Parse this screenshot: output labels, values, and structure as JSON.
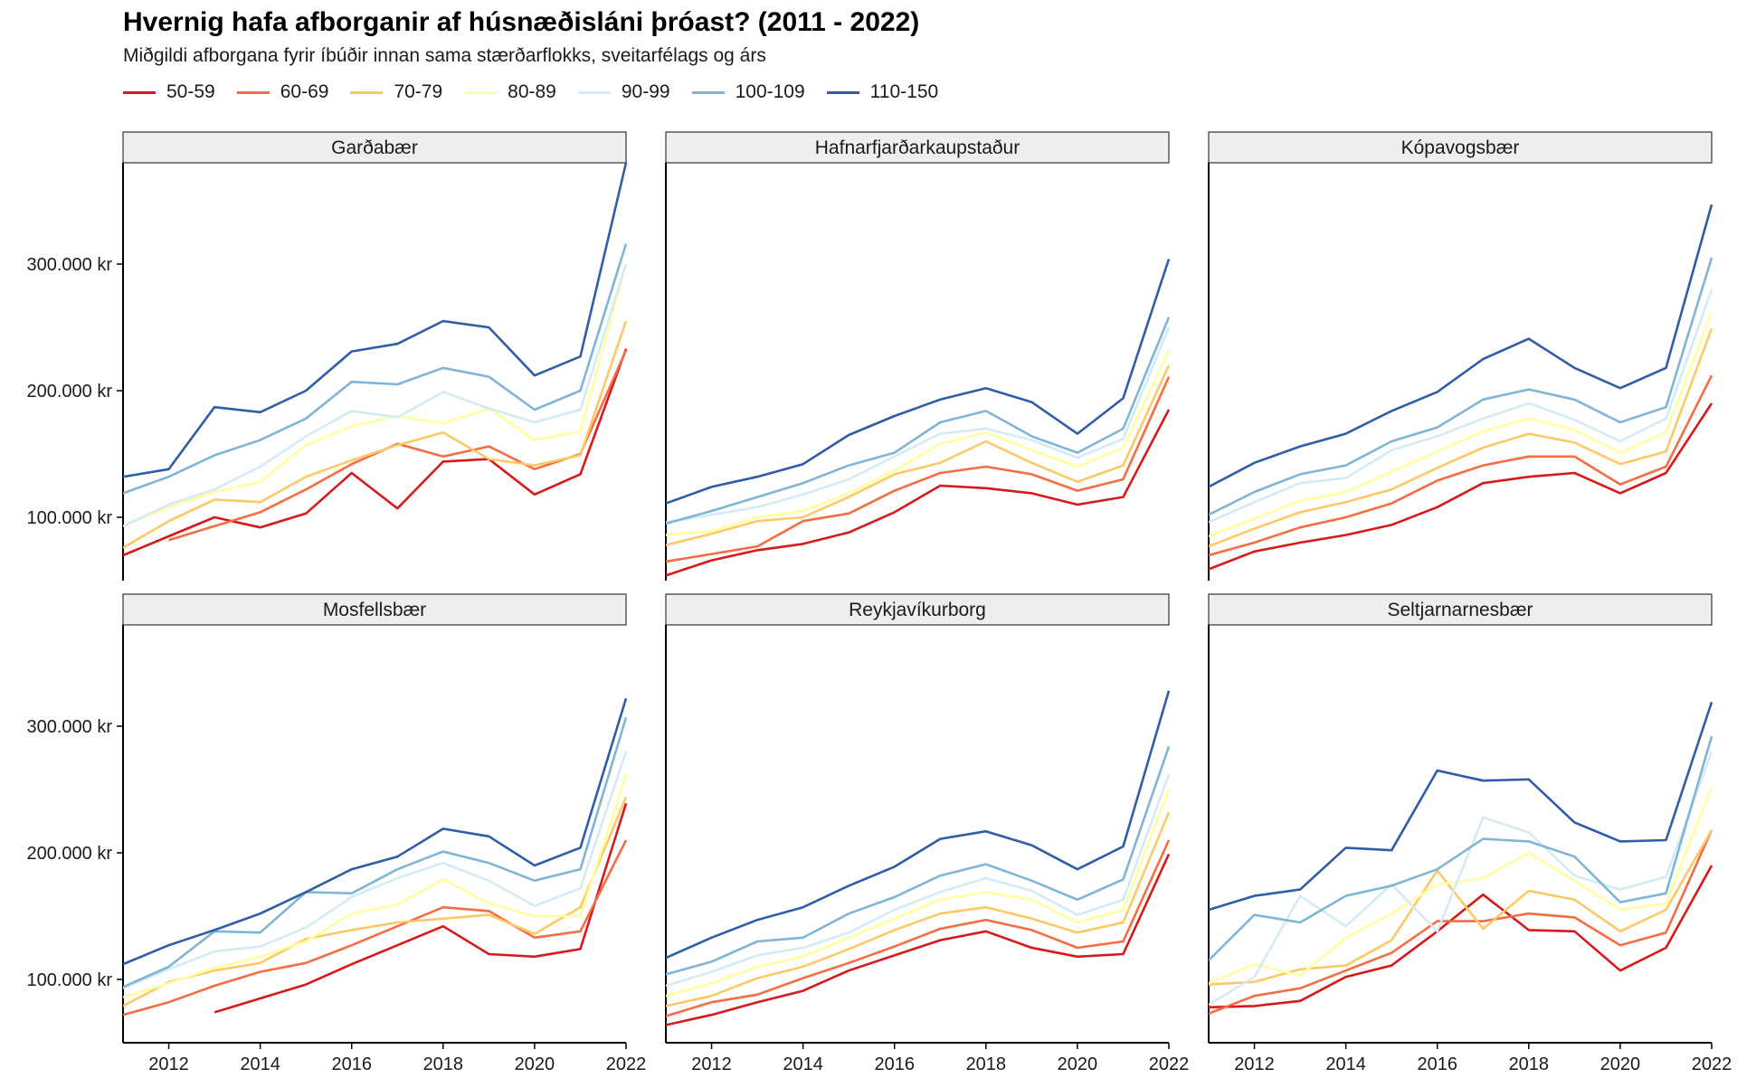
{
  "chart_data": {
    "type": "line",
    "title": "Hvernig hafa afborganir af húsnæðisláni þróast? (2011 - 2022)",
    "subtitle": "Miðgildi afborgana fyrir íbúðir innan sama stærðarflokks, sveitarfélags og árs",
    "xlabel": "",
    "ylabel": "",
    "x": [
      2011,
      2012,
      2013,
      2014,
      2015,
      2016,
      2017,
      2018,
      2019,
      2020,
      2021,
      2022
    ],
    "x_ticks": [
      2012,
      2014,
      2016,
      2018,
      2020,
      2022
    ],
    "xlim": [
      2011,
      2022
    ],
    "ylim": [
      50000,
      380000
    ],
    "y_ticks": [
      100000,
      200000,
      300000
    ],
    "y_tick_labels": [
      "100.000 kr",
      "200.000 kr",
      "300.000 kr"
    ],
    "grid": false,
    "legend_position": "top-left",
    "series_names": [
      "50-59",
      "60-69",
      "70-79",
      "80-89",
      "90-99",
      "100-109",
      "110-150"
    ],
    "series_colors": [
      "#d7191c",
      "#f46d43",
      "#fdc966",
      "#ffffa0",
      "#d4ebf5",
      "#7fb5d5",
      "#2f5da8"
    ],
    "panels": [
      {
        "name": "Garðabær",
        "series": [
          [
            70000,
            85000,
            100000,
            92000,
            103000,
            135000,
            107000,
            144000,
            146000,
            118000,
            134000,
            233000
          ],
          [
            null,
            82000,
            93000,
            104000,
            122000,
            142000,
            158000,
            148000,
            156000,
            138000,
            150000,
            232000
          ],
          [
            76000,
            97000,
            114000,
            112000,
            132000,
            145000,
            157000,
            167000,
            146000,
            141000,
            149000,
            255000
          ],
          [
            93000,
            108000,
            120000,
            128000,
            157000,
            172000,
            180000,
            174000,
            186000,
            161000,
            168000,
            300000
          ],
          [
            93000,
            110000,
            122000,
            140000,
            164000,
            184000,
            179000,
            199000,
            186000,
            175000,
            185000,
            300000
          ],
          [
            119000,
            132000,
            149000,
            161000,
            178000,
            207000,
            205000,
            218000,
            211000,
            185000,
            200000,
            316000
          ],
          [
            132000,
            138000,
            187000,
            183000,
            200000,
            231000,
            237000,
            255000,
            250000,
            212000,
            227000,
            380000
          ]
        ]
      },
      {
        "name": "Hafnarfjarðarkaupstaður",
        "series": [
          [
            54000,
            66000,
            74000,
            79000,
            88000,
            104000,
            125000,
            123000,
            119000,
            110000,
            116000,
            185000
          ],
          [
            65000,
            71000,
            77000,
            97000,
            103000,
            121000,
            135000,
            140000,
            134000,
            121000,
            130000,
            211000
          ],
          [
            78000,
            87000,
            97000,
            100000,
            116000,
            134000,
            143000,
            160000,
            143000,
            128000,
            141000,
            220000
          ],
          [
            86000,
            89000,
            100000,
            105000,
            119000,
            137000,
            158000,
            167000,
            153000,
            140000,
            155000,
            232000
          ],
          [
            96000,
            102000,
            108000,
            118000,
            130000,
            148000,
            166000,
            170000,
            161000,
            147000,
            162000,
            250000
          ],
          [
            95000,
            105000,
            116000,
            127000,
            141000,
            151000,
            175000,
            184000,
            164000,
            151000,
            170000,
            258000
          ],
          [
            111000,
            124000,
            132000,
            142000,
            165000,
            180000,
            193000,
            202000,
            191000,
            166000,
            194000,
            304000
          ]
        ]
      },
      {
        "name": "Kópavogsbær",
        "series": [
          [
            59000,
            73000,
            80000,
            86000,
            94000,
            108000,
            127000,
            132000,
            135000,
            119000,
            135000,
            190000
          ],
          [
            70000,
            80000,
            92000,
            100000,
            111000,
            129000,
            141000,
            148000,
            148000,
            126000,
            140000,
            212000
          ],
          [
            77000,
            91000,
            104000,
            112000,
            122000,
            139000,
            155000,
            166000,
            159000,
            142000,
            152000,
            249000
          ],
          [
            85000,
            99000,
            113000,
            120000,
            136000,
            152000,
            168000,
            178000,
            169000,
            151000,
            167000,
            262000
          ],
          [
            96000,
            112000,
            127000,
            131000,
            153000,
            164000,
            178000,
            190000,
            177000,
            160000,
            178000,
            280000
          ],
          [
            102000,
            120000,
            134000,
            141000,
            160000,
            171000,
            193000,
            201000,
            193000,
            175000,
            187000,
            305000
          ],
          [
            124000,
            143000,
            156000,
            166000,
            184000,
            199000,
            225000,
            241000,
            218000,
            202000,
            218000,
            347000
          ]
        ]
      },
      {
        "name": "Mosfellsbær",
        "series": [
          [
            null,
            null,
            74000,
            85000,
            96000,
            112000,
            127000,
            142000,
            120000,
            118000,
            124000,
            239000
          ],
          [
            72000,
            82000,
            95000,
            106000,
            113000,
            127000,
            142000,
            157000,
            154000,
            133000,
            138000,
            210000
          ],
          [
            79000,
            98000,
            107000,
            113000,
            132000,
            139000,
            145000,
            148000,
            151000,
            136000,
            157000,
            244000
          ],
          [
            86000,
            97000,
            109000,
            118000,
            130000,
            152000,
            159000,
            179000,
            160000,
            150000,
            150000,
            262000
          ],
          [
            93000,
            108000,
            122000,
            126000,
            141000,
            165000,
            180000,
            192000,
            178000,
            158000,
            172000,
            280000
          ],
          [
            94000,
            110000,
            138000,
            137000,
            169000,
            168000,
            187000,
            201000,
            192000,
            178000,
            187000,
            307000
          ],
          [
            112000,
            127000,
            139000,
            152000,
            169000,
            187000,
            197000,
            219000,
            213000,
            190000,
            204000,
            322000
          ]
        ]
      },
      {
        "name": "Reykjavíkurborg",
        "series": [
          [
            64000,
            72000,
            82000,
            91000,
            107000,
            119000,
            131000,
            138000,
            125000,
            118000,
            120000,
            199000
          ],
          [
            71000,
            82000,
            88000,
            101000,
            113000,
            126000,
            140000,
            147000,
            139000,
            125000,
            130000,
            210000
          ],
          [
            79000,
            87000,
            101000,
            110000,
            124000,
            139000,
            152000,
            157000,
            148000,
            137000,
            145000,
            232000
          ],
          [
            87000,
            97000,
            110000,
            118000,
            133000,
            148000,
            163000,
            169000,
            163000,
            145000,
            155000,
            250000
          ],
          [
            95000,
            106000,
            119000,
            125000,
            137000,
            155000,
            169000,
            180000,
            170000,
            151000,
            163000,
            262000
          ],
          [
            104000,
            114000,
            130000,
            133000,
            152000,
            165000,
            182000,
            191000,
            178000,
            163000,
            179000,
            284000
          ],
          [
            117000,
            133000,
            147000,
            157000,
            174000,
            189000,
            211000,
            217000,
            206000,
            187000,
            205000,
            328000
          ]
        ]
      },
      {
        "name": "Seltjarnarnesbær",
        "series": [
          [
            78000,
            79000,
            83000,
            102000,
            111000,
            138000,
            167000,
            139000,
            138000,
            107000,
            125000,
            190000
          ],
          [
            73000,
            87000,
            93000,
            107000,
            121000,
            146000,
            146000,
            152000,
            149000,
            127000,
            137000,
            218000
          ],
          [
            96000,
            98000,
            108000,
            111000,
            131000,
            186000,
            140000,
            170000,
            163000,
            138000,
            155000,
            218000
          ],
          [
            97000,
            112000,
            103000,
            133000,
            152000,
            175000,
            180000,
            200000,
            178000,
            155000,
            160000,
            252000
          ],
          [
            80000,
            102000,
            166000,
            142000,
            175000,
            138000,
            228000,
            216000,
            182000,
            171000,
            181000,
            280000
          ],
          [
            115000,
            151000,
            145000,
            166000,
            174000,
            187000,
            211000,
            209000,
            197000,
            161000,
            168000,
            292000
          ],
          [
            155000,
            166000,
            171000,
            204000,
            202000,
            265000,
            257000,
            258000,
            224000,
            209000,
            210000,
            319000
          ]
        ]
      }
    ]
  }
}
